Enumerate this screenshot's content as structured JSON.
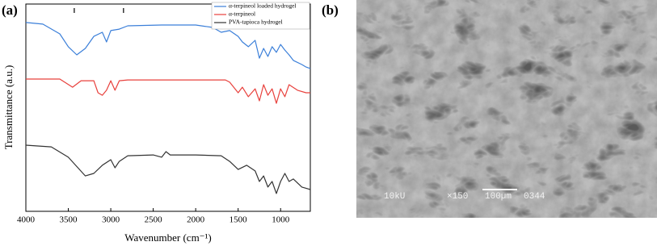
{
  "chart_data": {
    "type": "line",
    "xlabel": "Wavenumber (cm⁻¹)",
    "ylabel": "Transmittance (a.u.)",
    "xlim": [
      4000,
      650
    ],
    "ylim": [
      0,
      100
    ],
    "xticks": [
      4000,
      3500,
      3000,
      2500,
      2000,
      1500,
      1000
    ],
    "markers": [
      3430,
      2850
    ],
    "legend": "upper right",
    "series": [
      {
        "name": "α-terpineol loaded hydrogel",
        "color": "#3b7fd9",
        "x": [
          4000,
          3800,
          3600,
          3500,
          3400,
          3300,
          3200,
          3100,
          3050,
          3000,
          2900,
          2800,
          2400,
          2000,
          1800,
          1700,
          1600,
          1500,
          1450,
          1380,
          1300,
          1250,
          1200,
          1150,
          1100,
          1050,
          1000,
          950,
          900,
          850,
          750,
          700,
          650
        ],
        "values": [
          91.1,
          90.3,
          85.6,
          79.4,
          75.5,
          78.6,
          84.4,
          86.4,
          81.7,
          87.2,
          87.9,
          89.5,
          89.9,
          89.9,
          88.7,
          86.4,
          87.2,
          84.4,
          81.7,
          79.4,
          82.5,
          73.9,
          78.6,
          74.7,
          79.4,
          76.7,
          80.5,
          77.8,
          75.5,
          72.8,
          70.8,
          69.6,
          68.9
        ]
      },
      {
        "name": "α-terpineol",
        "color": "#e8403c",
        "x": [
          4000,
          3600,
          3450,
          3350,
          3200,
          3150,
          3100,
          3050,
          3000,
          2950,
          2900,
          2800,
          2000,
          1650,
          1600,
          1500,
          1450,
          1380,
          1300,
          1250,
          1200,
          1150,
          1100,
          1050,
          1000,
          950,
          900,
          800,
          700,
          650
        ],
        "values": [
          63.8,
          63.8,
          59.9,
          63.0,
          63.0,
          57.2,
          56.0,
          58.4,
          63.0,
          58.4,
          63.0,
          63.4,
          63.4,
          63.4,
          62.3,
          57.2,
          59.9,
          55.3,
          59.1,
          53.3,
          61.1,
          56.0,
          59.1,
          52.1,
          59.1,
          55.3,
          61.1,
          58.4,
          57.2,
          57.2
        ]
      },
      {
        "name": "PVA-tapioca hydrogel",
        "color": "#333333",
        "x": [
          4000,
          3700,
          3500,
          3300,
          3200,
          3100,
          3000,
          2950,
          2900,
          2800,
          2500,
          2400,
          2350,
          2300,
          2000,
          1700,
          1600,
          1500,
          1400,
          1300,
          1250,
          1200,
          1150,
          1100,
          1050,
          1000,
          950,
          900,
          850,
          750,
          650
        ],
        "values": [
          31.9,
          31.1,
          26.1,
          17.1,
          18.3,
          22.2,
          24.9,
          21.0,
          24.1,
          26.8,
          27.2,
          26.1,
          28.8,
          27.2,
          27.2,
          26.8,
          24.1,
          20.2,
          22.2,
          19.5,
          14.4,
          17.1,
          11.7,
          14.4,
          8.6,
          14.4,
          18.3,
          14.4,
          15.6,
          11.7,
          10.5
        ]
      }
    ]
  },
  "panel_labels": [
    "(a)",
    "(b)"
  ],
  "sem_caption": [
    "10kU",
    "×150",
    "100µm",
    "0344"
  ]
}
